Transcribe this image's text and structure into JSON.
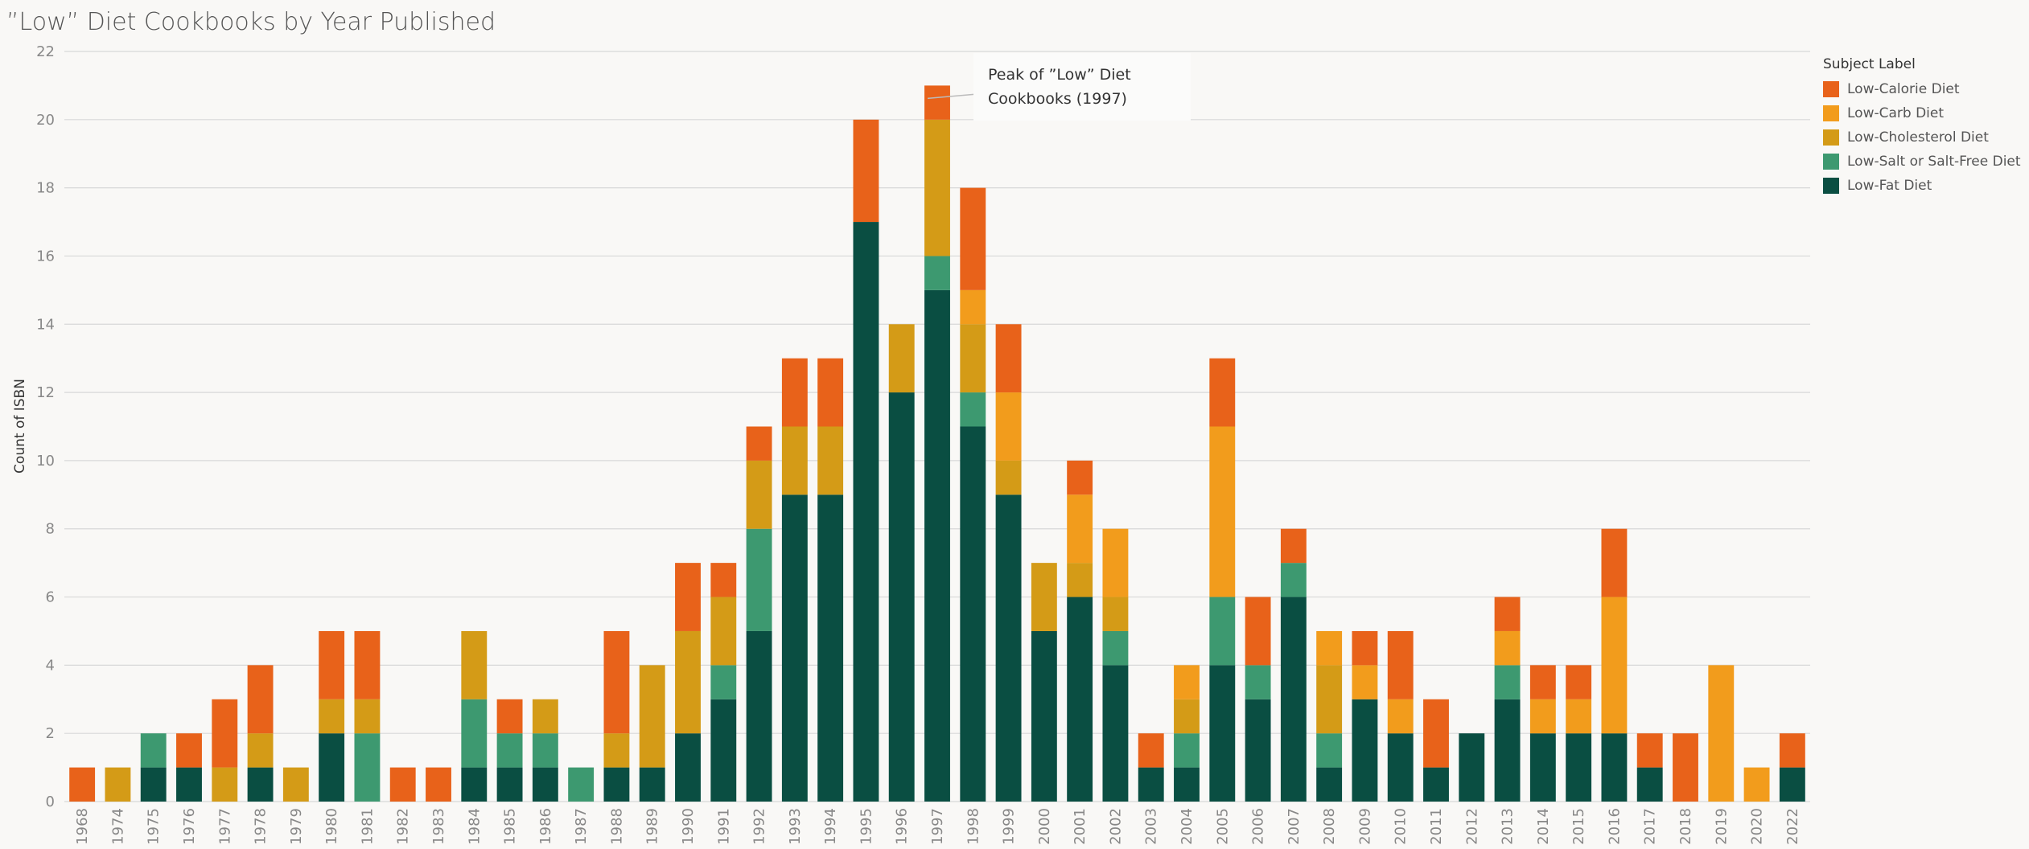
{
  "header": {
    "title": "”Low” Diet Cookbooks by Year Published"
  },
  "annotation": {
    "line1": "Peak of ”Low” Diet",
    "line2": "Cookbooks (1997)"
  },
  "legend": {
    "title": "Subject Label",
    "items": [
      {
        "label": "Low-Calorie Diet",
        "color": "#e8621a"
      },
      {
        "label": "Low-Carb Diet",
        "color": "#f29c1c"
      },
      {
        "label": "Low-Cholesterol Diet",
        "color": "#d49b17"
      },
      {
        "label": "Low-Salt or Salt-Free Diet",
        "color": "#3d9970"
      },
      {
        "label": "Low-Fat Diet",
        "color": "#0a4e42"
      }
    ]
  },
  "chart_data": {
    "type": "bar",
    "stacked": true,
    "ylabel": "Count of ISBN",
    "xlabel": "",
    "ylim": [
      0,
      22
    ],
    "yticks": [
      0,
      2,
      4,
      6,
      8,
      10,
      12,
      14,
      16,
      18,
      20,
      22
    ],
    "grid": true,
    "legend_position": "top-right",
    "categories": [
      "1968",
      "1974",
      "1975",
      "1976",
      "1977",
      "1978",
      "1979",
      "1980",
      "1981",
      "1982",
      "1983",
      "1984",
      "1985",
      "1986",
      "1987",
      "1988",
      "1989",
      "1990",
      "1991",
      "1992",
      "1993",
      "1994",
      "1995",
      "1996",
      "1997",
      "1998",
      "1999",
      "2000",
      "2001",
      "2002",
      "2003",
      "2004",
      "2005",
      "2006",
      "2007",
      "2008",
      "2009",
      "2010",
      "2011",
      "2012",
      "2013",
      "2014",
      "2015",
      "2016",
      "2017",
      "2018",
      "2019",
      "2020",
      "2022"
    ],
    "series": [
      {
        "name": "Low-Fat Diet",
        "color": "#0a4e42",
        "values": [
          0,
          0,
          1,
          1,
          0,
          1,
          0,
          2,
          0,
          0,
          0,
          1,
          1,
          1,
          0,
          1,
          1,
          2,
          3,
          5,
          9,
          9,
          17,
          12,
          15,
          11,
          9,
          5,
          6,
          4,
          1,
          1,
          4,
          3,
          6,
          1,
          3,
          2,
          1,
          2,
          3,
          2,
          2,
          2,
          1,
          0,
          0,
          0,
          1
        ]
      },
      {
        "name": "Low-Salt or Salt-Free Diet",
        "color": "#3d9970",
        "values": [
          0,
          0,
          1,
          0,
          0,
          0,
          0,
          0,
          2,
          0,
          0,
          2,
          1,
          1,
          1,
          0,
          0,
          0,
          1,
          3,
          0,
          0,
          0,
          0,
          1,
          1,
          0,
          0,
          0,
          1,
          0,
          1,
          2,
          1,
          1,
          1,
          0,
          0,
          0,
          0,
          1,
          0,
          0,
          0,
          0,
          0,
          0,
          0,
          0
        ]
      },
      {
        "name": "Low-Cholesterol Diet",
        "color": "#d49b17",
        "values": [
          0,
          1,
          0,
          0,
          1,
          1,
          1,
          1,
          1,
          0,
          0,
          2,
          0,
          1,
          0,
          1,
          3,
          3,
          2,
          2,
          2,
          2,
          0,
          2,
          4,
          2,
          1,
          2,
          1,
          1,
          0,
          1,
          0,
          0,
          0,
          2,
          0,
          0,
          0,
          0,
          0,
          0,
          0,
          0,
          0,
          0,
          0,
          0,
          0
        ]
      },
      {
        "name": "Low-Carb Diet",
        "color": "#f29c1c",
        "values": [
          0,
          0,
          0,
          0,
          0,
          0,
          0,
          0,
          0,
          0,
          0,
          0,
          0,
          0,
          0,
          0,
          0,
          0,
          0,
          0,
          0,
          0,
          0,
          0,
          0,
          1,
          2,
          0,
          2,
          2,
          0,
          1,
          5,
          0,
          0,
          1,
          1,
          1,
          0,
          0,
          1,
          1,
          1,
          4,
          0,
          0,
          4,
          1,
          0
        ]
      },
      {
        "name": "Low-Calorie Diet",
        "color": "#e8621a",
        "values": [
          1,
          0,
          0,
          1,
          2,
          2,
          0,
          2,
          2,
          1,
          1,
          0,
          1,
          0,
          0,
          3,
          0,
          2,
          1,
          1,
          2,
          2,
          3,
          0,
          1,
          3,
          2,
          0,
          1,
          0,
          1,
          0,
          2,
          2,
          1,
          0,
          1,
          2,
          2,
          0,
          1,
          1,
          1,
          2,
          1,
          2,
          0,
          0,
          1
        ]
      }
    ],
    "annotation": {
      "category": "1997",
      "text": "Peak of ”Low” Diet Cookbooks (1997)"
    }
  }
}
